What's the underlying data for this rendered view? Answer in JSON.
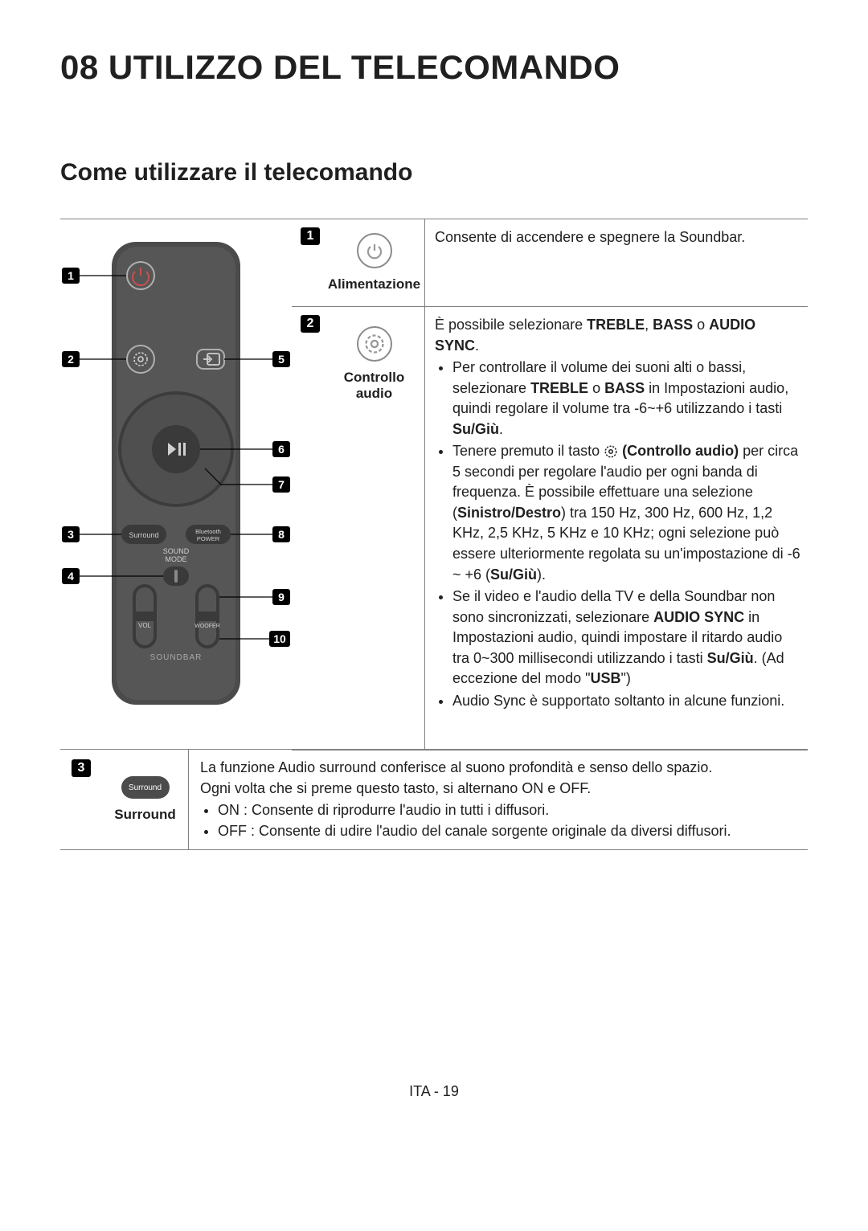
{
  "title": "08  UTILIZZO DEL TELECOMANDO",
  "subtitle": "Come utilizzare il telecomando",
  "footer": "ITA - 19",
  "colors": {
    "text": "#202020",
    "border": "#808080",
    "badge_bg": "#000000",
    "badge_fg": "#ffffff",
    "remote_body": "#4b4b4b",
    "remote_body_inner": "#5a5a5a",
    "remote_button_dark": "#3a3a3a",
    "icon_gray": "#8a8a8a"
  },
  "remote": {
    "callouts": [
      "1",
      "2",
      "3",
      "4",
      "5",
      "6",
      "7",
      "8",
      "9",
      "10"
    ],
    "labels": {
      "surround": "Surround",
      "bluetooth_power": "Bluetooth POWER",
      "sound_mode": "SOUND MODE",
      "vol": "VOL",
      "woofer": "WOOFER",
      "soundbar": "SOUNDBAR"
    }
  },
  "rows": [
    {
      "num": "1",
      "label": "Alimentazione",
      "icon": "power",
      "desc_html": "Consente di accendere e spegnere la Soundbar."
    },
    {
      "num": "2",
      "label": "Controllo audio",
      "icon": "gear",
      "desc_html": "È possibile selezionare <b>TREBLE</b>, <b>BASS</b> o <b>AUDIO SYNC</b>.<ul><li>Per controllare il volume dei suoni alti o bassi, selezionare <b>TREBLE</b> o <b>BASS</b> in Impostazioni audio, quindi regolare il volume tra -6~+6 utilizzando i tasti <b>Su/Giù</b>.</li><li>Tenere premuto il tasto <svg style='display:inline-block;vertical-align:-4px' width='18' height='18' viewBox='0 0 24 24'><g fill='none' stroke='#202020' stroke-width='2' stroke-dasharray='3,2'><circle cx='12' cy='12' r='9'/></g><circle cx='12' cy='12' r='3' fill='none' stroke='#202020' stroke-width='2'/></svg> <b>(Controllo audio)</b> per circa 5 secondi per regolare l'audio per ogni banda di frequenza. È possibile effettuare una selezione (<b>Sinistro/Destro</b>) tra 150 Hz, 300 Hz, 600 Hz, 1,2 KHz, 2,5 KHz, 5 KHz e 10 KHz; ogni selezione può essere ulteriormente regolata su un'impostazione di -6 ~ +6 (<b>Su/Giù</b>).</li><li>Se il video e l'audio della TV e della Soundbar non sono sincronizzati, selezionare <b>AUDIO SYNC</b> in Impostazioni audio, quindi impostare il ritardo audio tra 0~300 millisecondi utilizzando i tasti <b>Su/Giù</b>. (Ad eccezione del modo \"<b>USB</b>\")</li><li>Audio Sync è supportato soltanto in alcune funzioni.</li></ul>"
    }
  ],
  "bottom_row": {
    "num": "3",
    "label": "Surround",
    "icon": "surround-pill",
    "desc_html": "La funzione Audio surround conferisce al suono profondità e senso dello spazio.<br>Ogni volta che si preme questo tasto, si alternano ON e OFF.<ul><li>ON : Consente di riprodurre l'audio in tutti i diffusori.</li><li>OFF : Consente di udire l'audio del canale sorgente originale da diversi diffusori.</li></ul>"
  }
}
